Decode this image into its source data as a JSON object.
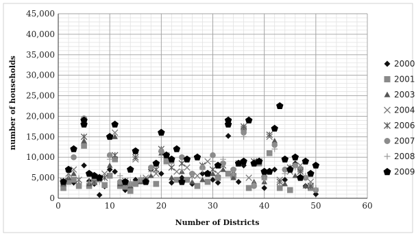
{
  "chart_data": {
    "type": "scatter",
    "title": "",
    "xlabel": "Number of Districts",
    "ylabel": "number of households",
    "xlim": [
      0,
      60
    ],
    "ylim": [
      0,
      45000
    ],
    "x_ticks": [
      0,
      10,
      20,
      30,
      40,
      50,
      60
    ],
    "y_ticks": [
      0,
      5000,
      10000,
      15000,
      20000,
      25000,
      30000,
      35000,
      40000,
      45000
    ],
    "x_tick_labels": [
      "0",
      "10",
      "20",
      "30",
      "40",
      "50",
      "60"
    ],
    "y_tick_labels": [
      "0",
      "5,000",
      "10,000",
      "15,000",
      "20,000",
      "25,000",
      "30,000",
      "35,000",
      "40,000",
      "45,000"
    ],
    "grid": true,
    "legend_position": "right",
    "series": [
      {
        "name": "2000",
        "marker": "diamond",
        "color": "#111111",
        "x": [
          1,
          2,
          3,
          4,
          5,
          6,
          7,
          8,
          9,
          10,
          11,
          12,
          13,
          14,
          15,
          18,
          20,
          22,
          24,
          26,
          28,
          30,
          31,
          33,
          35,
          36,
          38,
          40,
          42,
          44,
          46,
          48,
          50
        ],
        "y": [
          3000,
          4500,
          3800,
          3200,
          8000,
          4200,
          3500,
          800,
          2900,
          7000,
          6500,
          3000,
          2000,
          2600,
          4500,
          7000,
          6000,
          3800,
          5000,
          3500,
          6000,
          4500,
          3800,
          15200,
          4000,
          8000,
          3000,
          2500,
          7000,
          4500,
          8500,
          3000,
          1000
        ]
      },
      {
        "name": "2001",
        "marker": "square",
        "color": "#8a8a8a",
        "x": [
          1,
          2,
          3,
          4,
          5,
          6,
          7,
          9,
          10,
          11,
          12,
          13,
          14,
          15,
          17,
          19,
          21,
          23,
          25,
          27,
          29,
          31,
          33,
          34,
          36,
          37,
          39,
          41,
          43,
          45,
          47,
          49
        ],
        "y": [
          2500,
          4000,
          4500,
          3000,
          12800,
          3000,
          4000,
          3200,
          5500,
          9500,
          3000,
          2800,
          1800,
          3500,
          4200,
          3500,
          9000,
          4500,
          4500,
          3000,
          4000,
          5000,
          6000,
          5500,
          17000,
          2500,
          8500,
          11000,
          2500,
          2000,
          7000,
          2500
        ]
      },
      {
        "name": "2003",
        "marker": "triangle",
        "color": "#555555",
        "x": [
          1,
          2,
          3,
          5,
          6,
          8,
          10,
          11,
          12,
          14,
          16,
          18,
          20,
          22,
          24,
          26,
          28,
          30,
          32,
          34,
          36,
          38,
          40,
          42,
          44,
          46,
          48
        ],
        "y": [
          3500,
          5000,
          6000,
          14000,
          3500,
          4500,
          8000,
          15000,
          3500,
          3000,
          4000,
          5500,
          11000,
          5000,
          6500,
          4000,
          4500,
          6000,
          7000,
          5000,
          16500,
          4000,
          4000,
          14000,
          3500,
          5500,
          3000
        ]
      },
      {
        "name": "2004",
        "marker": "x",
        "color": "#7a7a7a",
        "x": [
          1,
          3,
          5,
          7,
          9,
          11,
          13,
          15,
          17,
          19,
          21,
          23,
          25,
          27,
          29,
          31,
          33,
          35,
          37,
          39,
          41,
          43,
          45,
          47,
          49
        ],
        "y": [
          4000,
          7000,
          19000,
          5000,
          6000,
          16000,
          4200,
          9500,
          5000,
          6000,
          10500,
          6500,
          7500,
          5500,
          9000,
          6000,
          18500,
          8500,
          5000,
          9000,
          15000,
          4500,
          6500,
          8000,
          4000
        ]
      },
      {
        "name": "2006",
        "marker": "asterisk",
        "color": "#5a5a5a",
        "x": [
          1,
          2,
          4,
          5,
          7,
          9,
          11,
          13,
          15,
          17,
          19,
          20,
          22,
          24,
          26,
          28,
          30,
          32,
          34,
          36,
          38,
          40,
          41,
          43,
          45,
          47,
          49
        ],
        "y": [
          4200,
          6000,
          4500,
          15000,
          4000,
          5000,
          10500,
          3800,
          10000,
          4500,
          7000,
          12000,
          7500,
          8500,
          5500,
          8000,
          7000,
          8000,
          6500,
          17500,
          9000,
          6000,
          15500,
          4000,
          7500,
          6500,
          3000
        ]
      },
      {
        "name": "2007",
        "marker": "circle",
        "color": "#8c8c8c",
        "x": [
          1,
          3,
          5,
          7,
          10,
          12,
          14,
          16,
          18,
          20,
          22,
          24,
          26,
          28,
          30,
          32,
          34,
          36,
          38,
          40,
          42,
          44,
          46,
          48,
          50
        ],
        "y": [
          3800,
          10000,
          19500,
          5000,
          10500,
          4000,
          3500,
          4500,
          7500,
          11500,
          9000,
          10000,
          6000,
          7500,
          10500,
          8500,
          7000,
          16000,
          3000,
          5000,
          13000,
          7000,
          8000,
          5000,
          2000
        ]
      },
      {
        "name": "2008",
        "marker": "plus",
        "color": "#9a9a9a",
        "x": [
          2,
          4,
          6,
          8,
          10,
          12,
          14,
          16,
          18,
          20,
          22,
          24,
          26,
          28,
          30,
          32,
          34,
          36,
          38,
          40,
          42,
          44,
          46,
          48,
          50
        ],
        "y": [
          5500,
          5000,
          4000,
          4000,
          9500,
          5500,
          4000,
          5000,
          6500,
          10000,
          8500,
          7000,
          5000,
          7000,
          9000,
          9500,
          6000,
          15000,
          3500,
          4500,
          12000,
          6000,
          7500,
          5500,
          2500
        ]
      },
      {
        "name": "2009",
        "marker": "pentagon",
        "color": "#000000",
        "x": [
          1,
          2,
          3,
          5,
          5,
          6,
          7,
          8,
          10,
          11,
          13,
          14,
          15,
          17,
          19,
          20,
          21,
          22,
          23,
          24,
          25,
          27,
          29,
          31,
          33,
          33,
          35,
          36,
          37,
          38,
          39,
          40,
          41,
          42,
          43,
          44,
          45,
          46,
          47,
          48,
          49,
          50
        ],
        "y": [
          4000,
          7000,
          12000,
          18000,
          19000,
          6000,
          5500,
          5000,
          15000,
          18000,
          4000,
          7000,
          11500,
          4000,
          8500,
          16000,
          10500,
          9500,
          12000,
          4000,
          9500,
          10000,
          6000,
          8000,
          19000,
          18000,
          8500,
          9000,
          19000,
          8500,
          9000,
          6500,
          6500,
          17000,
          22500,
          9500,
          7000,
          10000,
          5000,
          9000,
          6000,
          8000
        ]
      }
    ]
  }
}
